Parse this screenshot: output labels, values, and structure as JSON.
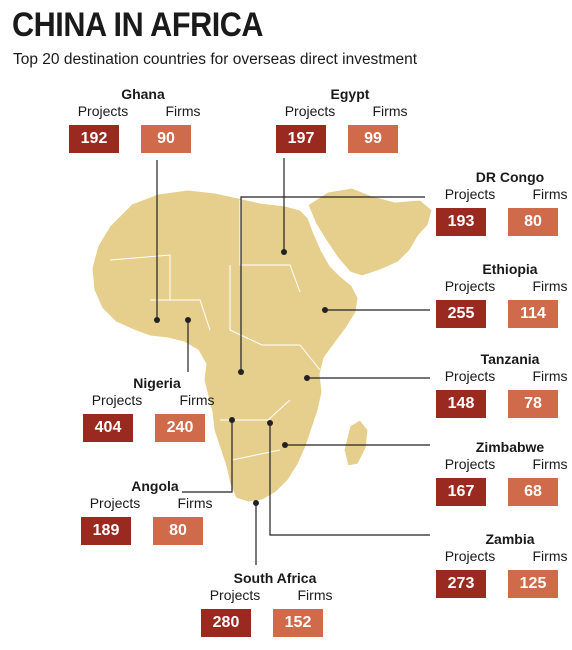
{
  "title": "CHINA IN AFRICA",
  "subtitle": "Top 20 destination countries for overseas direct investment",
  "labels": {
    "projects": "Projects",
    "firms": "Firms"
  },
  "colors": {
    "projects": "#9a2a1f",
    "firms": "#cf6a4b",
    "land": "#e6cf8d",
    "border": "#ffffff",
    "leader": "#222222"
  },
  "countries": [
    {
      "id": "ghana",
      "name": "Ghana",
      "projects": 192,
      "firms": 90
    },
    {
      "id": "egypt",
      "name": "Egypt",
      "projects": 197,
      "firms": 99
    },
    {
      "id": "drcongo",
      "name": "DR Congo",
      "projects": 193,
      "firms": 80
    },
    {
      "id": "ethiopia",
      "name": "Ethiopia",
      "projects": 255,
      "firms": 114
    },
    {
      "id": "tanzania",
      "name": "Tanzania",
      "projects": 148,
      "firms": 78
    },
    {
      "id": "nigeria",
      "name": "Nigeria",
      "projects": 404,
      "firms": 240
    },
    {
      "id": "zimbabwe",
      "name": "Zimbabwe",
      "projects": 167,
      "firms": 68
    },
    {
      "id": "angola",
      "name": "Angola",
      "projects": 189,
      "firms": 80
    },
    {
      "id": "zambia",
      "name": "Zambia",
      "projects": 273,
      "firms": 125
    },
    {
      "id": "southafrica",
      "name": "South Africa",
      "projects": 280,
      "firms": 152
    }
  ]
}
